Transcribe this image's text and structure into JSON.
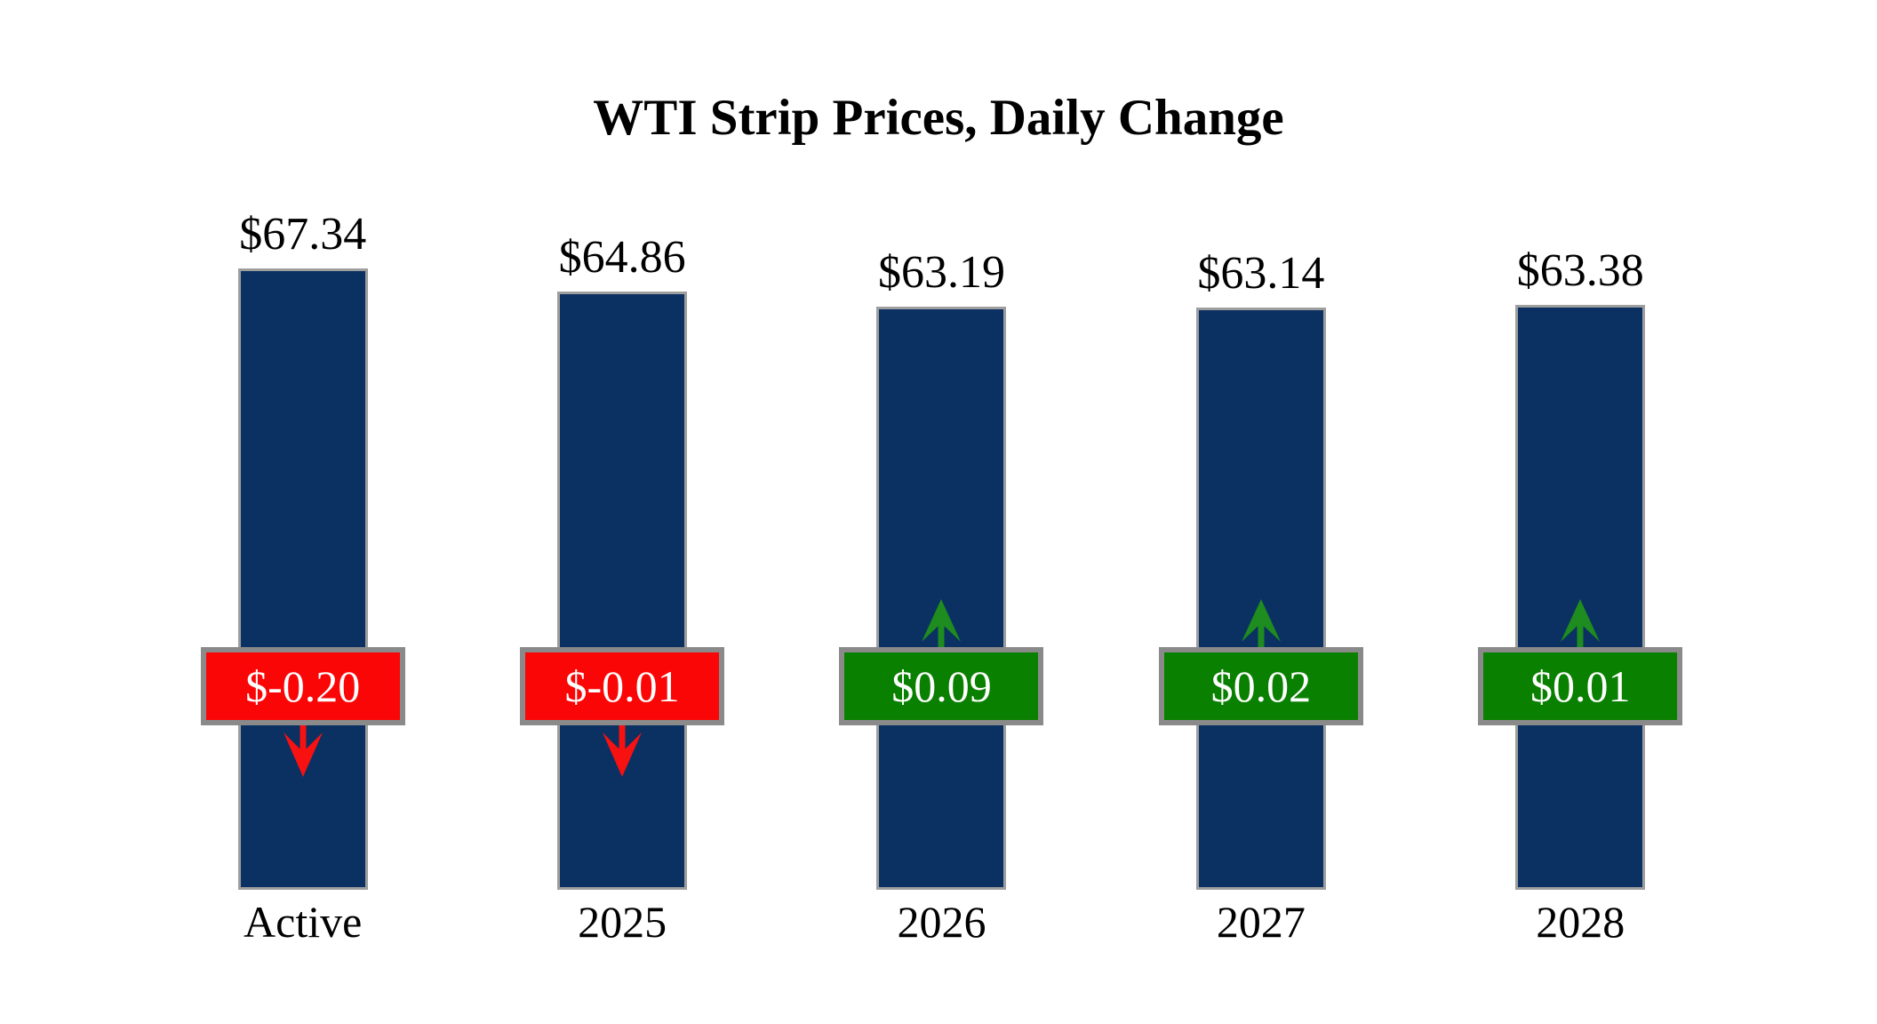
{
  "chart_data": {
    "type": "bar",
    "title": "WTI Strip Prices, Daily Change",
    "categories": [
      "Active",
      "2025",
      "2026",
      "2027",
      "2028"
    ],
    "series": [
      {
        "name": "WTI Strip Price",
        "values": [
          67.34,
          64.86,
          63.19,
          63.14,
          63.38
        ]
      },
      {
        "name": "Daily Change",
        "values": [
          -0.2,
          -0.01,
          0.09,
          0.02,
          0.01
        ]
      }
    ],
    "price_labels": [
      "$67.34",
      "$64.86",
      "$63.19",
      "$63.14",
      "$63.38"
    ],
    "change_labels": [
      "$-0.20",
      "$-0.01",
      "$0.09",
      "$0.02",
      "$0.01"
    ],
    "change_directions": [
      "down",
      "down",
      "up",
      "up",
      "up"
    ],
    "ylim": [
      0,
      67.34
    ],
    "grid": false,
    "legend": "none",
    "axes_visible": false,
    "colors": {
      "background": "#FFFFFF",
      "bar_fill": "#0A3161",
      "bar_border": "#9E9E9E",
      "negative_badge": "#FB0606",
      "positive_badge": "#0A8000",
      "negative_arrow": "#F71111",
      "positive_arrow": "#1E8C1E",
      "badge_border": "#8A8A8A",
      "badge_text": "#FFFFFF",
      "title_text": "#000000",
      "label_text": "#000000"
    }
  }
}
